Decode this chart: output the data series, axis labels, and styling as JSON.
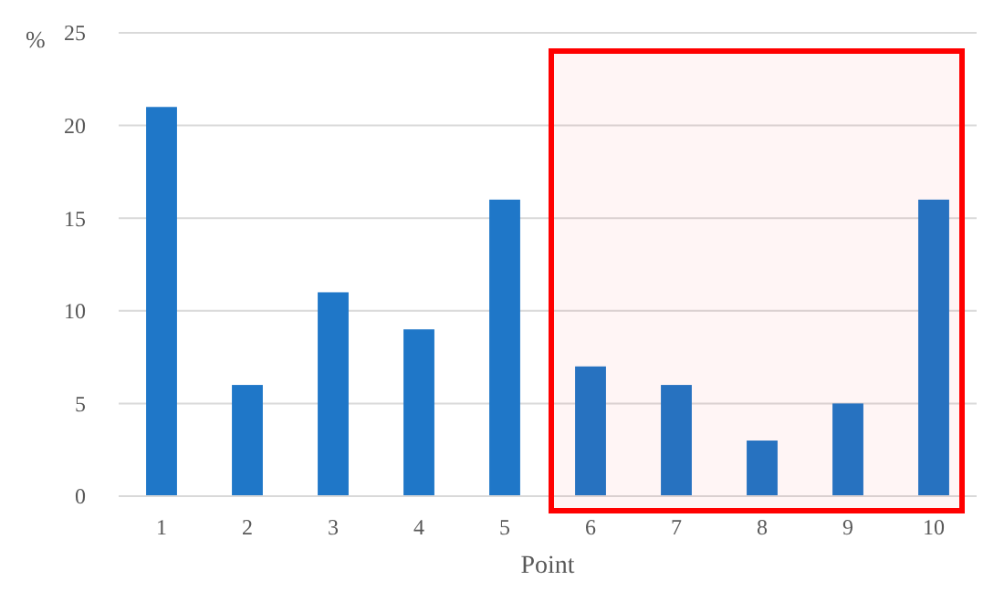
{
  "chart_data": {
    "type": "bar",
    "xlabel": "Point",
    "ylabel": "%",
    "categories": [
      "1",
      "2",
      "3",
      "4",
      "5",
      "6",
      "7",
      "8",
      "9",
      "10"
    ],
    "values": [
      21,
      6,
      11,
      9,
      16,
      7,
      6,
      3,
      5,
      16
    ],
    "color": "#1f77c8",
    "ylim": [
      0,
      25
    ],
    "yticks": [
      0,
      5,
      10,
      15,
      20,
      25
    ],
    "grid": "y",
    "bands": [
      {
        "axis": "x",
        "from": "6",
        "to": "10",
        "color": "#ff0000"
      }
    ]
  }
}
